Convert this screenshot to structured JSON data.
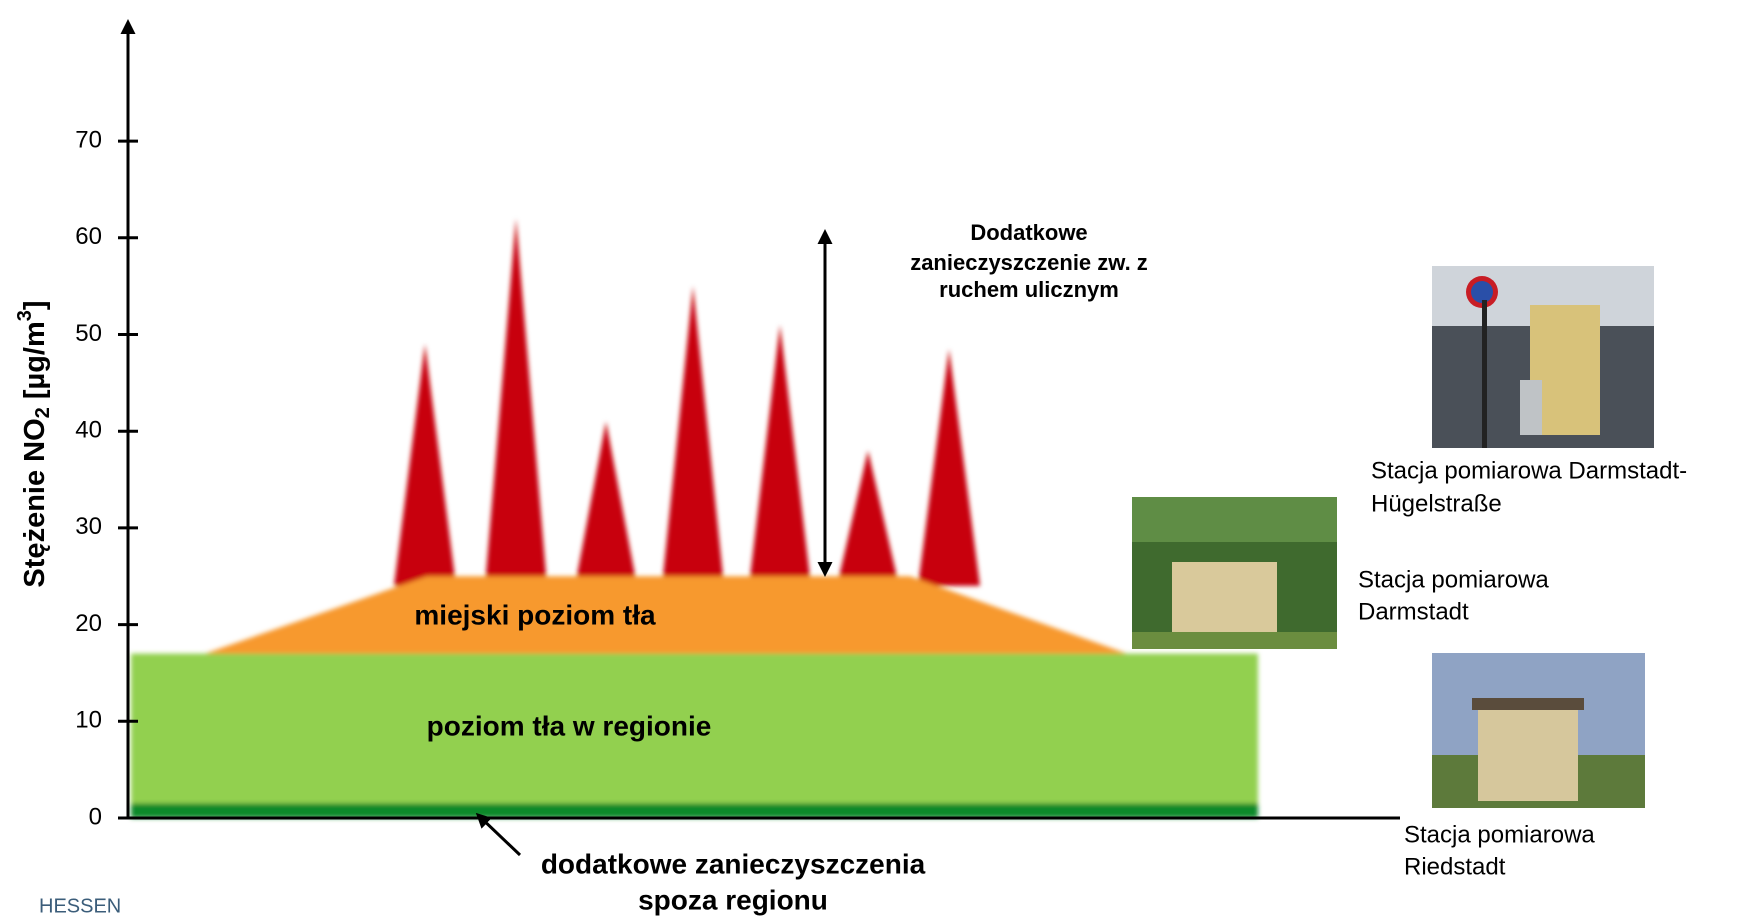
{
  "chart_data": {
    "type": "layers",
    "y_label": [
      "Stężenie NO",
      "2",
      " [µg/m",
      "3",
      "]"
    ],
    "ylim": [
      0,
      80
    ],
    "yticks": [
      0,
      10,
      20,
      30,
      40,
      50,
      60,
      70
    ],
    "extra_level": 1.5,
    "regional_level": 17,
    "urban_level": 25,
    "peak_base": 24,
    "peaks": [
      49,
      62,
      41,
      55,
      51,
      38,
      48.5
    ],
    "colors": {
      "peaks": "#c8000a",
      "urban": "#f7992f",
      "regional": "#92d050",
      "extra": "#0b8a2c"
    },
    "urban_label": "miejski poziom tła",
    "regional_label": "poziom tła w regionie",
    "traffic_label": [
      "Dodatkowe",
      "zanieczyszczenie zw. z",
      "ruchem ulicznym"
    ],
    "extra_label": [
      "dodatkowe zanieczyszczenia",
      "spoza regionu"
    ],
    "stations": [
      {
        "caption": [
          "Stacja pomiarowa Darmstadt-",
          "Hügelstraße"
        ]
      },
      {
        "caption": [
          "Stacja pomiarowa",
          "Darmstadt"
        ]
      },
      {
        "caption": [
          "Stacja pomiarowa",
          "Riedstadt"
        ]
      }
    ],
    "logo": "HESSEN"
  }
}
